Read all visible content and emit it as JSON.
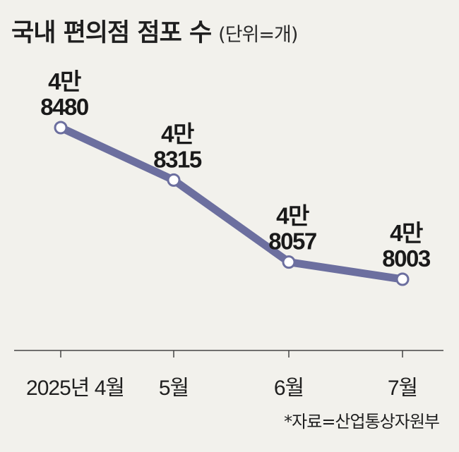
{
  "header": {
    "title": "국내 편의점 점포 수",
    "unit": "(단위=개)"
  },
  "source": "*자료=산업통상자원부",
  "chart_data": {
    "type": "line",
    "categories": [
      "2025년 4월",
      "5월",
      "6월",
      "7월"
    ],
    "values": [
      48480,
      48315,
      48057,
      48003
    ],
    "data_labels": [
      [
        "4만",
        "8480"
      ],
      [
        "4만",
        "8315"
      ],
      [
        "4만",
        "8057"
      ],
      [
        "4만",
        "8003"
      ]
    ],
    "title": "국내 편의점 점포 수",
    "unit_label": "(단위=개)",
    "xlabel": "",
    "ylabel": "",
    "grid": false,
    "colors": {
      "line": "#6c6f9f",
      "marker_fill": "#ffffff",
      "axis": "#444444",
      "background": "#f2f1ec"
    }
  }
}
